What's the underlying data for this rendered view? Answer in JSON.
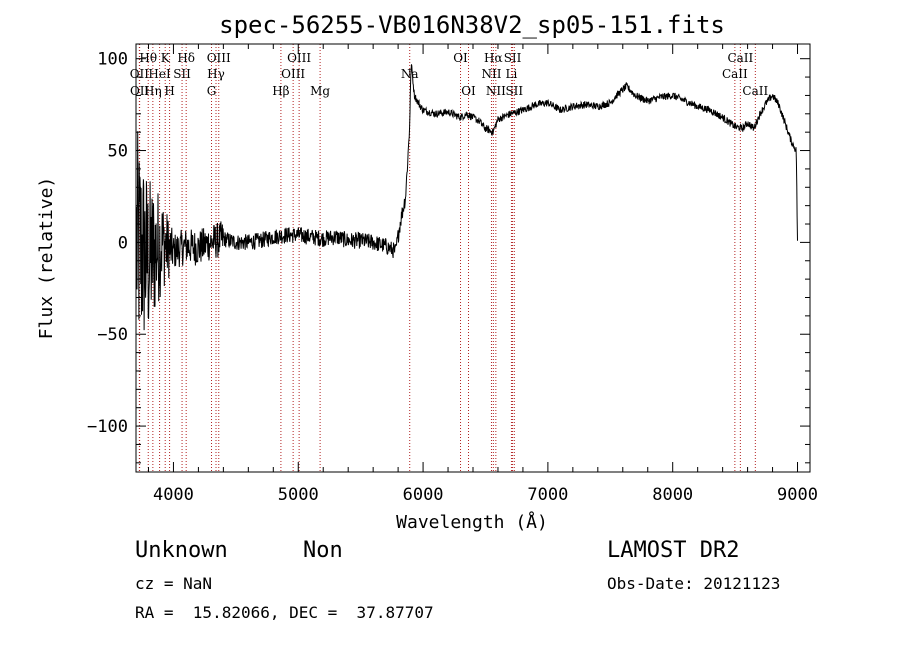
{
  "chart_data": {
    "type": "line",
    "title": "spec-56255-VB016N38V2_sp05-151.fits",
    "xlabel": "Wavelength (Å)",
    "ylabel": "Flux (relative)",
    "xlim": [
      3700,
      9100
    ],
    "ylim": [
      -125,
      108
    ],
    "xticks": [
      4000,
      5000,
      6000,
      7000,
      8000,
      9000
    ],
    "yticks": [
      -100,
      -50,
      0,
      50,
      100
    ],
    "grid": false,
    "spectrum_anchors": [
      [
        3700,
        0
      ],
      [
        3800,
        -10
      ],
      [
        3900,
        0
      ],
      [
        4000,
        -5
      ],
      [
        4100,
        -2
      ],
      [
        4200,
        -3
      ],
      [
        4300,
        0
      ],
      [
        4400,
        2
      ],
      [
        4500,
        0
      ],
      [
        4600,
        0
      ],
      [
        4700,
        1
      ],
      [
        4800,
        3
      ],
      [
        4900,
        4
      ],
      [
        5000,
        4
      ],
      [
        5100,
        3
      ],
      [
        5200,
        2
      ],
      [
        5300,
        3
      ],
      [
        5400,
        1
      ],
      [
        5500,
        1
      ],
      [
        5600,
        0
      ],
      [
        5700,
        -2
      ],
      [
        5780,
        -5
      ],
      [
        5820,
        12
      ],
      [
        5860,
        25
      ],
      [
        5890,
        60
      ],
      [
        5905,
        98
      ],
      [
        5930,
        80
      ],
      [
        5970,
        75
      ],
      [
        6000,
        72
      ],
      [
        6100,
        70
      ],
      [
        6200,
        71
      ],
      [
        6300,
        68
      ],
      [
        6350,
        70
      ],
      [
        6450,
        66
      ],
      [
        6500,
        62
      ],
      [
        6560,
        60
      ],
      [
        6600,
        67
      ],
      [
        6700,
        70
      ],
      [
        6800,
        72
      ],
      [
        6900,
        75
      ],
      [
        7000,
        76
      ],
      [
        7100,
        72
      ],
      [
        7200,
        74
      ],
      [
        7300,
        75
      ],
      [
        7400,
        74
      ],
      [
        7500,
        76
      ],
      [
        7550,
        80
      ],
      [
        7630,
        85
      ],
      [
        7700,
        80
      ],
      [
        7800,
        77
      ],
      [
        7900,
        79
      ],
      [
        8000,
        80
      ],
      [
        8100,
        77
      ],
      [
        8200,
        74
      ],
      [
        8300,
        72
      ],
      [
        8400,
        68
      ],
      [
        8500,
        63
      ],
      [
        8560,
        62
      ],
      [
        8600,
        65
      ],
      [
        8650,
        62
      ],
      [
        8700,
        70
      ],
      [
        8750,
        76
      ],
      [
        8800,
        80
      ],
      [
        8850,
        75
      ],
      [
        8900,
        65
      ],
      [
        8950,
        55
      ],
      [
        8990,
        50
      ],
      [
        9000,
        0
      ]
    ],
    "lines": [
      {
        "label": "Hθ",
        "x": 3798,
        "row": 1
      },
      {
        "label": "OII",
        "x": 3727,
        "row": 2
      },
      {
        "label": "OII",
        "x": 3729,
        "row": 3
      },
      {
        "label": "Hη",
        "x": 3835,
        "row": 3
      },
      {
        "label": "HeI",
        "x": 3889,
        "row": 2
      },
      {
        "label": "K",
        "x": 3934,
        "row": 1
      },
      {
        "label": "H",
        "x": 3969,
        "row": 3
      },
      {
        "label": "SII",
        "x": 4069,
        "row": 2
      },
      {
        "label": "Hδ",
        "x": 4102,
        "row": 1
      },
      {
        "label": "OIII",
        "x": 4363,
        "row": 1
      },
      {
        "label": "Hγ",
        "x": 4341,
        "row": 2
      },
      {
        "label": "G",
        "x": 4305,
        "row": 3
      },
      {
        "label": "Hβ",
        "x": 4861,
        "row": 3
      },
      {
        "label": "OIII",
        "x": 5007,
        "row": 1
      },
      {
        "label": "OIII",
        "x": 4959,
        "row": 2
      },
      {
        "label": "Mg",
        "x": 5175,
        "row": 3
      },
      {
        "label": "Na",
        "x": 5893,
        "row": 2
      },
      {
        "label": "OI",
        "x": 6300,
        "row": 1
      },
      {
        "label": "OI",
        "x": 6364,
        "row": 3
      },
      {
        "label": "Hα",
        "x": 6563,
        "row": 1
      },
      {
        "label": "NII",
        "x": 6548,
        "row": 2
      },
      {
        "label": "NII",
        "x": 6583,
        "row": 3
      },
      {
        "label": "SII",
        "x": 6717,
        "row": 1
      },
      {
        "label": "Li",
        "x": 6708,
        "row": 2
      },
      {
        "label": "SII",
        "x": 6731,
        "row": 3
      },
      {
        "label": "CaII",
        "x": 8542,
        "row": 1
      },
      {
        "label": "CaII",
        "x": 8498,
        "row": 2
      },
      {
        "label": "CaII",
        "x": 8662,
        "row": 3
      }
    ]
  },
  "footer": {
    "class_label": "Unknown",
    "subclass_label": "Non",
    "survey": "LAMOST DR2",
    "cz": "cz = NaN",
    "obs_date": "Obs-Date: 20121123",
    "coords": "RA =  15.82066, DEC =  37.87707"
  },
  "colors": {
    "spectrum": "#000000",
    "line_markers": "#b22222",
    "axes": "#000000"
  }
}
